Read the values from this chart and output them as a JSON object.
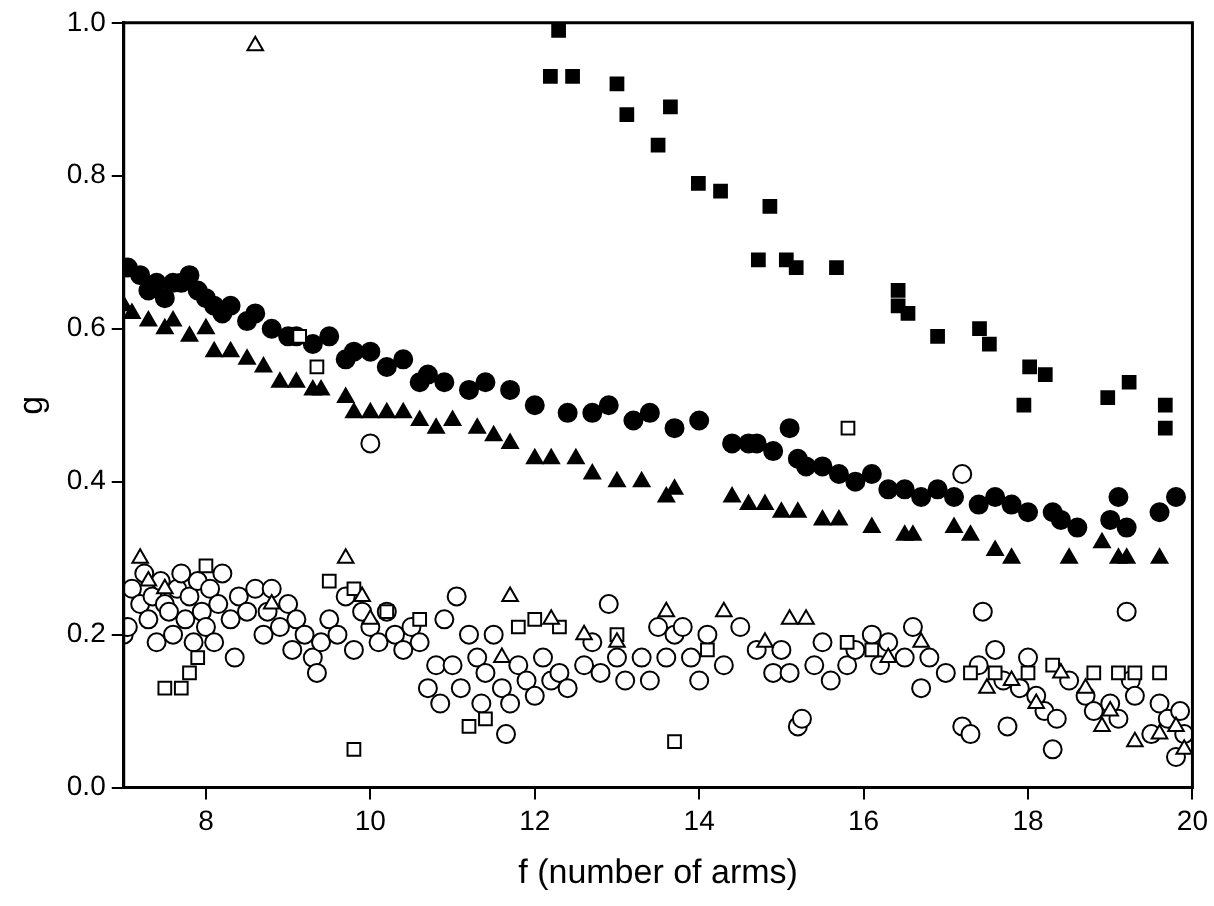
{
  "chart_data": {
    "type": "scatter",
    "xlabel": "f (number of arms)",
    "ylabel": "g",
    "xlim": [
      7,
      20
    ],
    "xticks": [
      8,
      10,
      12,
      14,
      16,
      18,
      20
    ],
    "ylim": [
      0,
      1
    ],
    "yticks": [
      {
        "value": 0,
        "label": "0.0"
      },
      0.2,
      0.4,
      0.6,
      0.8,
      {
        "value": 1,
        "label": "1.0"
      }
    ],
    "grid": false,
    "legend": false,
    "series": [
      {
        "marker": "square",
        "color": "#000000",
        "x": [
          12.29,
          12.19,
          12.46,
          13.0,
          13.12,
          13.65,
          13.5,
          13.99,
          14.26,
          14.86,
          14.72,
          15.06,
          15.18,
          15.67,
          16.42,
          16.42,
          16.54,
          16.9,
          17.41,
          17.53,
          18.02,
          18.21,
          17.95,
          18.97,
          19.23,
          19.67,
          19.67
        ],
        "values": [
          0.99,
          0.93,
          0.93,
          0.92,
          0.88,
          0.89,
          0.84,
          0.79,
          0.78,
          0.76,
          0.69,
          0.69,
          0.68,
          0.68,
          0.65,
          0.63,
          0.62,
          0.59,
          0.6,
          0.58,
          0.55,
          0.54,
          0.5,
          0.51,
          0.53,
          0.5,
          0.47
        ]
      },
      {
        "marker": "circle",
        "color": "#000000",
        "x": [
          7.05,
          7.2,
          7.3,
          7.4,
          7.5,
          7.6,
          7.7,
          7.8,
          7.9,
          8.0,
          8.1,
          8.2,
          8.3,
          8.5,
          8.6,
          8.8,
          9.0,
          9.1,
          9.3,
          9.5,
          9.7,
          9.8,
          10.0,
          10.2,
          10.4,
          10.6,
          10.7,
          10.9,
          11.2,
          11.4,
          11.7,
          12.0,
          12.4,
          12.7,
          12.9,
          13.2,
          13.4,
          13.7,
          14.0,
          14.4,
          14.6,
          14.7,
          14.9,
          15.1,
          15.2,
          15.3,
          15.5,
          15.7,
          15.9,
          16.1,
          16.3,
          16.5,
          16.7,
          16.9,
          17.1,
          17.4,
          17.6,
          17.8,
          18.0,
          18.3,
          18.4,
          18.6,
          19.0,
          19.1,
          19.2,
          19.6,
          19.8
        ],
        "values": [
          0.68,
          0.67,
          0.65,
          0.66,
          0.64,
          0.66,
          0.66,
          0.67,
          0.65,
          0.64,
          0.63,
          0.62,
          0.63,
          0.61,
          0.62,
          0.6,
          0.59,
          0.59,
          0.58,
          0.59,
          0.56,
          0.57,
          0.57,
          0.55,
          0.56,
          0.53,
          0.54,
          0.53,
          0.52,
          0.53,
          0.52,
          0.5,
          0.49,
          0.49,
          0.5,
          0.48,
          0.49,
          0.47,
          0.48,
          0.45,
          0.45,
          0.45,
          0.44,
          0.47,
          0.43,
          0.42,
          0.42,
          0.41,
          0.4,
          0.41,
          0.39,
          0.39,
          0.38,
          0.39,
          0.38,
          0.37,
          0.38,
          0.37,
          0.36,
          0.36,
          0.35,
          0.34,
          0.35,
          0.38,
          0.34,
          0.36,
          0.38
        ]
      },
      {
        "marker": "triangle",
        "color": "#000000",
        "x": [
          7.0,
          7.1,
          7.3,
          7.5,
          7.6,
          7.8,
          8.0,
          8.1,
          8.3,
          8.5,
          8.7,
          8.9,
          9.1,
          9.3,
          9.4,
          9.7,
          9.8,
          10.0,
          10.2,
          10.4,
          10.6,
          10.8,
          11.0,
          11.3,
          11.5,
          11.7,
          12.0,
          12.2,
          12.5,
          12.7,
          13.0,
          13.3,
          13.6,
          13.7,
          14.4,
          14.6,
          14.8,
          15.0,
          15.2,
          15.5,
          15.7,
          16.1,
          16.5,
          16.6,
          17.1,
          17.3,
          17.6,
          17.8,
          18.5,
          18.9,
          19.1,
          19.2,
          19.6
        ],
        "values": [
          0.63,
          0.62,
          0.61,
          0.6,
          0.61,
          0.59,
          0.6,
          0.57,
          0.57,
          0.56,
          0.55,
          0.53,
          0.53,
          0.52,
          0.52,
          0.51,
          0.49,
          0.49,
          0.49,
          0.49,
          0.48,
          0.47,
          0.48,
          0.47,
          0.46,
          0.45,
          0.43,
          0.43,
          0.43,
          0.41,
          0.4,
          0.4,
          0.38,
          0.39,
          0.38,
          0.37,
          0.37,
          0.36,
          0.36,
          0.35,
          0.35,
          0.34,
          0.33,
          0.33,
          0.34,
          0.33,
          0.31,
          0.3,
          0.3,
          0.32,
          0.3,
          0.3,
          0.3
        ]
      },
      {
        "marker": "circle",
        "x": [
          7.0,
          7.05,
          7.1,
          7.2,
          7.25,
          7.3,
          7.35,
          7.4,
          7.45,
          7.5,
          7.55,
          7.6,
          7.65,
          7.7,
          7.75,
          7.8,
          7.85,
          7.9,
          7.95,
          8.0,
          8.05,
          8.1,
          8.15,
          8.2,
          8.3,
          8.35,
          8.4,
          8.5,
          8.6,
          8.7,
          8.75,
          8.8,
          8.9,
          9.0,
          9.05,
          9.1,
          9.2,
          9.3,
          9.35,
          9.4,
          9.5,
          9.6,
          9.7,
          9.8,
          9.9,
          10.0,
          10.1,
          10.2,
          10.3,
          10.4,
          10.5,
          10.6,
          10.7,
          10.8,
          10.85,
          10.9,
          11.0,
          11.05,
          11.1,
          11.2,
          11.3,
          11.35,
          11.4,
          11.5,
          11.6,
          11.65,
          11.7,
          11.8,
          11.9,
          12.0,
          12.1,
          12.2,
          12.3,
          12.4,
          12.6,
          12.7,
          12.8,
          12.9,
          13.0,
          13.1,
          13.3,
          13.4,
          13.5,
          13.6,
          13.7,
          13.8,
          13.9,
          14.0,
          14.1,
          14.3,
          14.5,
          14.7,
          14.9,
          15.0,
          15.1,
          15.2,
          15.25,
          15.4,
          15.5,
          15.6,
          15.8,
          15.9,
          16.1,
          16.2,
          16.3,
          16.5,
          16.6,
          16.7,
          16.8,
          17.0,
          17.2,
          17.3,
          17.4,
          17.45,
          17.6,
          17.7,
          17.75,
          17.9,
          18.0,
          18.1,
          18.2,
          18.3,
          18.35,
          18.5,
          18.7,
          18.8,
          19.0,
          19.1,
          19.2,
          19.25,
          19.3,
          19.5,
          19.6,
          19.7,
          19.8,
          19.85,
          19.9,
          17.2,
          10.0
        ],
        "values": [
          0.2,
          0.21,
          0.26,
          0.24,
          0.28,
          0.22,
          0.25,
          0.19,
          0.27,
          0.24,
          0.23,
          0.2,
          0.26,
          0.28,
          0.22,
          0.25,
          0.19,
          0.27,
          0.23,
          0.21,
          0.26,
          0.19,
          0.24,
          0.28,
          0.22,
          0.17,
          0.25,
          0.23,
          0.26,
          0.2,
          0.23,
          0.26,
          0.21,
          0.24,
          0.18,
          0.22,
          0.2,
          0.17,
          0.15,
          0.19,
          0.22,
          0.2,
          0.25,
          0.18,
          0.23,
          0.21,
          0.19,
          0.23,
          0.2,
          0.18,
          0.21,
          0.19,
          0.13,
          0.16,
          0.11,
          0.22,
          0.16,
          0.25,
          0.13,
          0.2,
          0.17,
          0.11,
          0.15,
          0.2,
          0.13,
          0.07,
          0.11,
          0.16,
          0.14,
          0.12,
          0.17,
          0.14,
          0.15,
          0.13,
          0.16,
          0.19,
          0.15,
          0.24,
          0.17,
          0.14,
          0.17,
          0.14,
          0.21,
          0.17,
          0.2,
          0.21,
          0.17,
          0.14,
          0.2,
          0.16,
          0.21,
          0.18,
          0.15,
          0.18,
          0.15,
          0.08,
          0.09,
          0.16,
          0.19,
          0.14,
          0.16,
          0.18,
          0.2,
          0.16,
          0.19,
          0.17,
          0.21,
          0.13,
          0.17,
          0.15,
          0.08,
          0.07,
          0.16,
          0.23,
          0.18,
          0.14,
          0.08,
          0.13,
          0.17,
          0.12,
          0.1,
          0.05,
          0.09,
          0.14,
          0.12,
          0.1,
          0.11,
          0.09,
          0.23,
          0.14,
          0.12,
          0.07,
          0.11,
          0.09,
          0.04,
          0.1,
          0.07,
          0.41,
          0.45
        ]
      },
      {
        "marker": "square",
        "x": [
          7.5,
          7.7,
          7.8,
          7.9,
          8.0,
          9.14,
          9.35,
          9.5,
          9.8,
          9.8,
          10.2,
          10.6,
          11.2,
          11.4,
          11.8,
          12.0,
          12.3,
          13.0,
          13.7,
          14.1,
          15.8,
          15.81,
          16.1,
          17.3,
          17.6,
          18.0,
          18.3,
          18.8,
          19.1,
          19.3,
          19.6
        ],
        "values": [
          0.13,
          0.13,
          0.15,
          0.17,
          0.29,
          0.59,
          0.55,
          0.27,
          0.26,
          0.05,
          0.23,
          0.22,
          0.08,
          0.09,
          0.21,
          0.22,
          0.21,
          0.2,
          0.06,
          0.18,
          0.19,
          0.47,
          0.18,
          0.15,
          0.15,
          0.15,
          0.16,
          0.15,
          0.15,
          0.15,
          0.15
        ]
      },
      {
        "marker": "triangle",
        "x": [
          8.6,
          7.2,
          7.3,
          7.5,
          8.8,
          9.7,
          9.9,
          10.0,
          11.6,
          11.7,
          12.2,
          12.6,
          13.0,
          13.6,
          14.3,
          14.8,
          15.1,
          15.3,
          16.3,
          16.7,
          17.5,
          17.8,
          18.1,
          18.4,
          18.7,
          18.9,
          19.0,
          19.3,
          19.6,
          19.8,
          19.9
        ],
        "values": [
          0.97,
          0.3,
          0.27,
          0.26,
          0.24,
          0.3,
          0.25,
          0.22,
          0.17,
          0.25,
          0.22,
          0.2,
          0.19,
          0.23,
          0.23,
          0.19,
          0.22,
          0.22,
          0.17,
          0.19,
          0.13,
          0.14,
          0.11,
          0.15,
          0.13,
          0.08,
          0.1,
          0.06,
          0.07,
          0.08,
          0.05
        ]
      }
    ]
  }
}
